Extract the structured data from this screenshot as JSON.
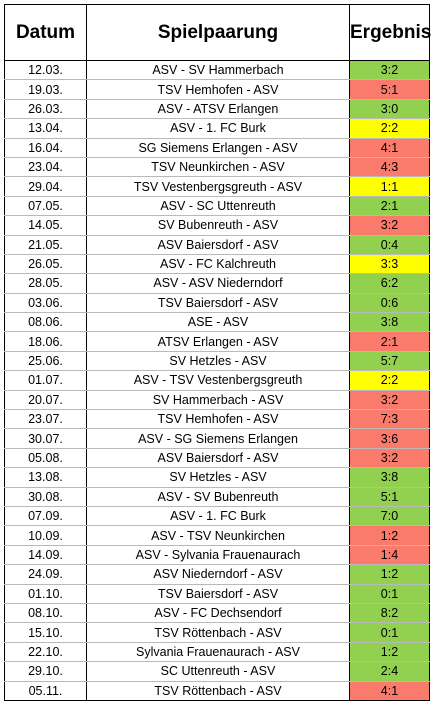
{
  "colors": {
    "win": "#92d050",
    "loss": "#fa7b6b",
    "draw": "#ffff00"
  },
  "table": {
    "headers": {
      "date": "Datum",
      "match": "Spielpaarung",
      "result": "Ergebnis"
    },
    "rows": [
      {
        "date": "12.03.",
        "match": "ASV - SV Hammerbach",
        "score": "3:2",
        "outcome": "win"
      },
      {
        "date": "19.03.",
        "match": "TSV Hemhofen - ASV",
        "score": "5:1",
        "outcome": "loss"
      },
      {
        "date": "26.03.",
        "match": "ASV - ATSV Erlangen",
        "score": "3:0",
        "outcome": "win"
      },
      {
        "date": "13.04.",
        "match": "ASV - 1. FC Burk",
        "score": "2:2",
        "outcome": "draw"
      },
      {
        "date": "16.04.",
        "match": "SG Siemens Erlangen - ASV",
        "score": "4:1",
        "outcome": "loss"
      },
      {
        "date": "23.04.",
        "match": "TSV Neunkirchen - ASV",
        "score": "4:3",
        "outcome": "loss"
      },
      {
        "date": "29.04.",
        "match": "TSV Vestenbergsgreuth - ASV",
        "score": "1:1",
        "outcome": "draw"
      },
      {
        "date": "07.05.",
        "match": "ASV - SC Uttenreuth",
        "score": "2:1",
        "outcome": "win"
      },
      {
        "date": "14.05.",
        "match": "SV Bubenreuth - ASV",
        "score": "3:2",
        "outcome": "loss"
      },
      {
        "date": "21.05.",
        "match": "ASV Baiersdorf - ASV",
        "score": "0:4",
        "outcome": "win"
      },
      {
        "date": "26.05.",
        "match": "ASV - FC Kalchreuth",
        "score": "3:3",
        "outcome": "draw"
      },
      {
        "date": "28.05.",
        "match": "ASV - ASV Niederndorf",
        "score": "6:2",
        "outcome": "win"
      },
      {
        "date": "03.06.",
        "match": "TSV Baiersdorf - ASV",
        "score": "0:6",
        "outcome": "win"
      },
      {
        "date": "08.06.",
        "match": "ASE - ASV",
        "score": "3:8",
        "outcome": "win"
      },
      {
        "date": "18.06.",
        "match": "ATSV Erlangen - ASV",
        "score": "2:1",
        "outcome": "loss"
      },
      {
        "date": "25.06.",
        "match": "SV Hetzles - ASV",
        "score": "5:7",
        "outcome": "win"
      },
      {
        "date": "01.07.",
        "match": "ASV - TSV Vestenbergsgreuth",
        "score": "2:2",
        "outcome": "draw"
      },
      {
        "date": "20.07.",
        "match": "SV Hammerbach - ASV",
        "score": "3:2",
        "outcome": "loss"
      },
      {
        "date": "23.07.",
        "match": "TSV Hemhofen - ASV",
        "score": "7:3",
        "outcome": "loss"
      },
      {
        "date": "30.07.",
        "match": "ASV - SG Siemens Erlangen",
        "score": "3:6",
        "outcome": "loss"
      },
      {
        "date": "05.08.",
        "match": "ASV Baiersdorf - ASV",
        "score": "3:2",
        "outcome": "loss"
      },
      {
        "date": "13.08.",
        "match": "SV Hetzles - ASV",
        "score": "3:8",
        "outcome": "win"
      },
      {
        "date": "30.08.",
        "match": "ASV - SV Bubenreuth",
        "score": "5:1",
        "outcome": "win"
      },
      {
        "date": "07.09.",
        "match": "ASV - 1. FC Burk",
        "score": "7:0",
        "outcome": "win"
      },
      {
        "date": "10.09.",
        "match": "ASV - TSV Neunkirchen",
        "score": "1:2",
        "outcome": "loss"
      },
      {
        "date": "14.09.",
        "match": "ASV - Sylvania Frauenaurach",
        "score": "1:4",
        "outcome": "loss"
      },
      {
        "date": "24.09.",
        "match": "ASV Niederndorf - ASV",
        "score": "1:2",
        "outcome": "win"
      },
      {
        "date": "01.10.",
        "match": "TSV Baiersdorf - ASV",
        "score": "0:1",
        "outcome": "win"
      },
      {
        "date": "08.10.",
        "match": "ASV - FC Dechsendorf",
        "score": "8:2",
        "outcome": "win"
      },
      {
        "date": "15.10.",
        "match": "TSV Röttenbach - ASV",
        "score": "0:1",
        "outcome": "win"
      },
      {
        "date": "22.10.",
        "match": "Sylvania Frauenaurach - ASV",
        "score": "1:2",
        "outcome": "win"
      },
      {
        "date": "29.10.",
        "match": "SC Uttenreuth - ASV",
        "score": "2:4",
        "outcome": "win"
      },
      {
        "date": "05.11.",
        "match": "TSV Röttenbach - ASV",
        "score": "4:1",
        "outcome": "loss"
      }
    ]
  }
}
